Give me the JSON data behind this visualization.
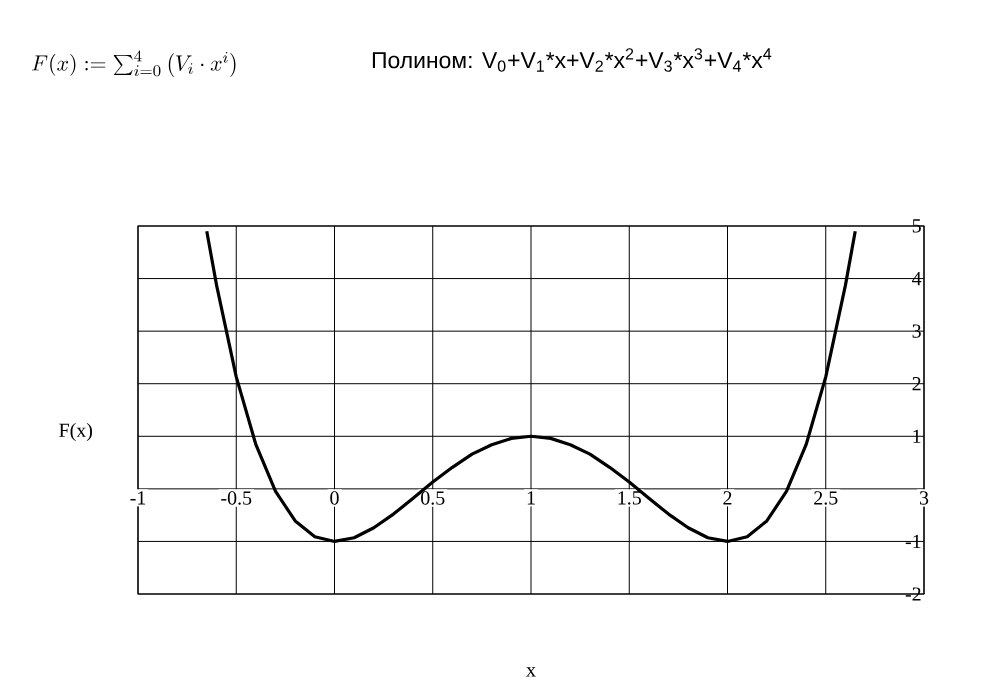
{
  "chart_data": {
    "type": "line",
    "title": "Полином: V$_{0}$+V$_{1}$*x+V$_{2}$*x$^{2}$+V$_{3}$*x$^{3}$+V$_{4}$*x$^{4}$",
    "annotations": [
      "F(x) := \\sum_{i=0}^{4} \\left(V_i \\cdot x^i\\right)"
    ],
    "xlabel": "x",
    "ylabel": "F(x)",
    "x": [
      -0.65,
      -0.6,
      -0.5,
      -0.4,
      -0.3,
      -0.2,
      -0.1,
      0,
      0.1,
      0.2,
      0.3,
      0.4,
      0.5,
      0.6,
      0.7,
      0.8,
      0.9,
      1,
      1.1,
      1.2,
      1.3,
      1.4,
      1.5,
      1.6,
      1.7,
      1.8,
      1.9,
      2,
      2.1,
      2.2,
      2.3,
      2.4,
      2.5,
      2.6,
      2.65
    ],
    "series": [
      {
        "color": "#000000",
        "values": [
          4.9,
          3.87,
          2.13,
          0.84,
          -0.05,
          -0.61,
          -0.91,
          -1,
          -0.93,
          -0.74,
          -0.48,
          -0.18,
          0.13,
          0.41,
          0.66,
          0.84,
          0.96,
          1,
          0.96,
          0.84,
          0.66,
          0.41,
          0.13,
          -0.18,
          -0.48,
          -0.74,
          -0.93,
          -1,
          -0.91,
          -0.61,
          -0.05,
          0.84,
          2.13,
          3.87,
          4.9
        ]
      }
    ],
    "xlim": [
      -1,
      3
    ],
    "ylim": [
      -2,
      5
    ],
    "xticks": [
      -1,
      -0.5,
      0,
      0.5,
      1,
      1.5,
      2,
      2.5,
      3
    ],
    "yticks": [
      -2,
      -1,
      {
        "value": 0,
        "label": null
      },
      1,
      2,
      3,
      4,
      5
    ],
    "grid": true,
    "line_style": "solid",
    "marker": "none"
  }
}
